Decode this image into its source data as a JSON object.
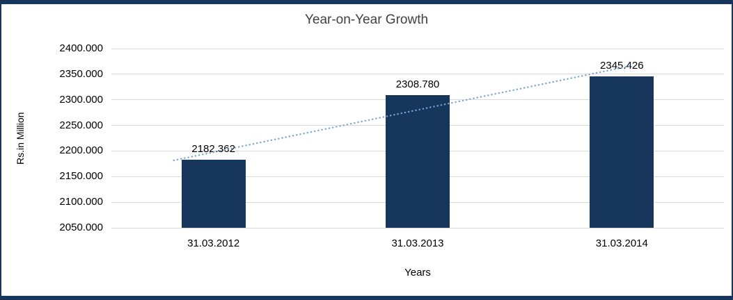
{
  "chart_data": {
    "type": "bar",
    "title": "Year-on-Year Growth",
    "xlabel": "Years",
    "ylabel": "Rs.in Million",
    "categories": [
      "31.03.2012",
      "31.03.2013",
      "31.03.2014"
    ],
    "values": [
      2182.362,
      2308.78,
      2345.426
    ],
    "data_labels": [
      "2182.362",
      "2308.780",
      "2345.426"
    ],
    "ylim": [
      2050,
      2400
    ],
    "ytick_step": 50,
    "ytick_labels": [
      "2050.000",
      "2100.000",
      "2150.000",
      "2200.000",
      "2250.000",
      "2300.000",
      "2350.000",
      "2400.000"
    ],
    "grid": true,
    "legend": "none",
    "bar_color": "#16365C",
    "trendline": {
      "type": "linear",
      "style": "dotted",
      "color": "#7AA4D6",
      "x1_frac": 0.102,
      "value1": 2181.7,
      "x2_frac": 0.847,
      "value2": 2366.1
    }
  },
  "colors": {
    "frame_border": "#16365C",
    "gridline": "#D9D9D9",
    "background": "#FFFFFF"
  }
}
